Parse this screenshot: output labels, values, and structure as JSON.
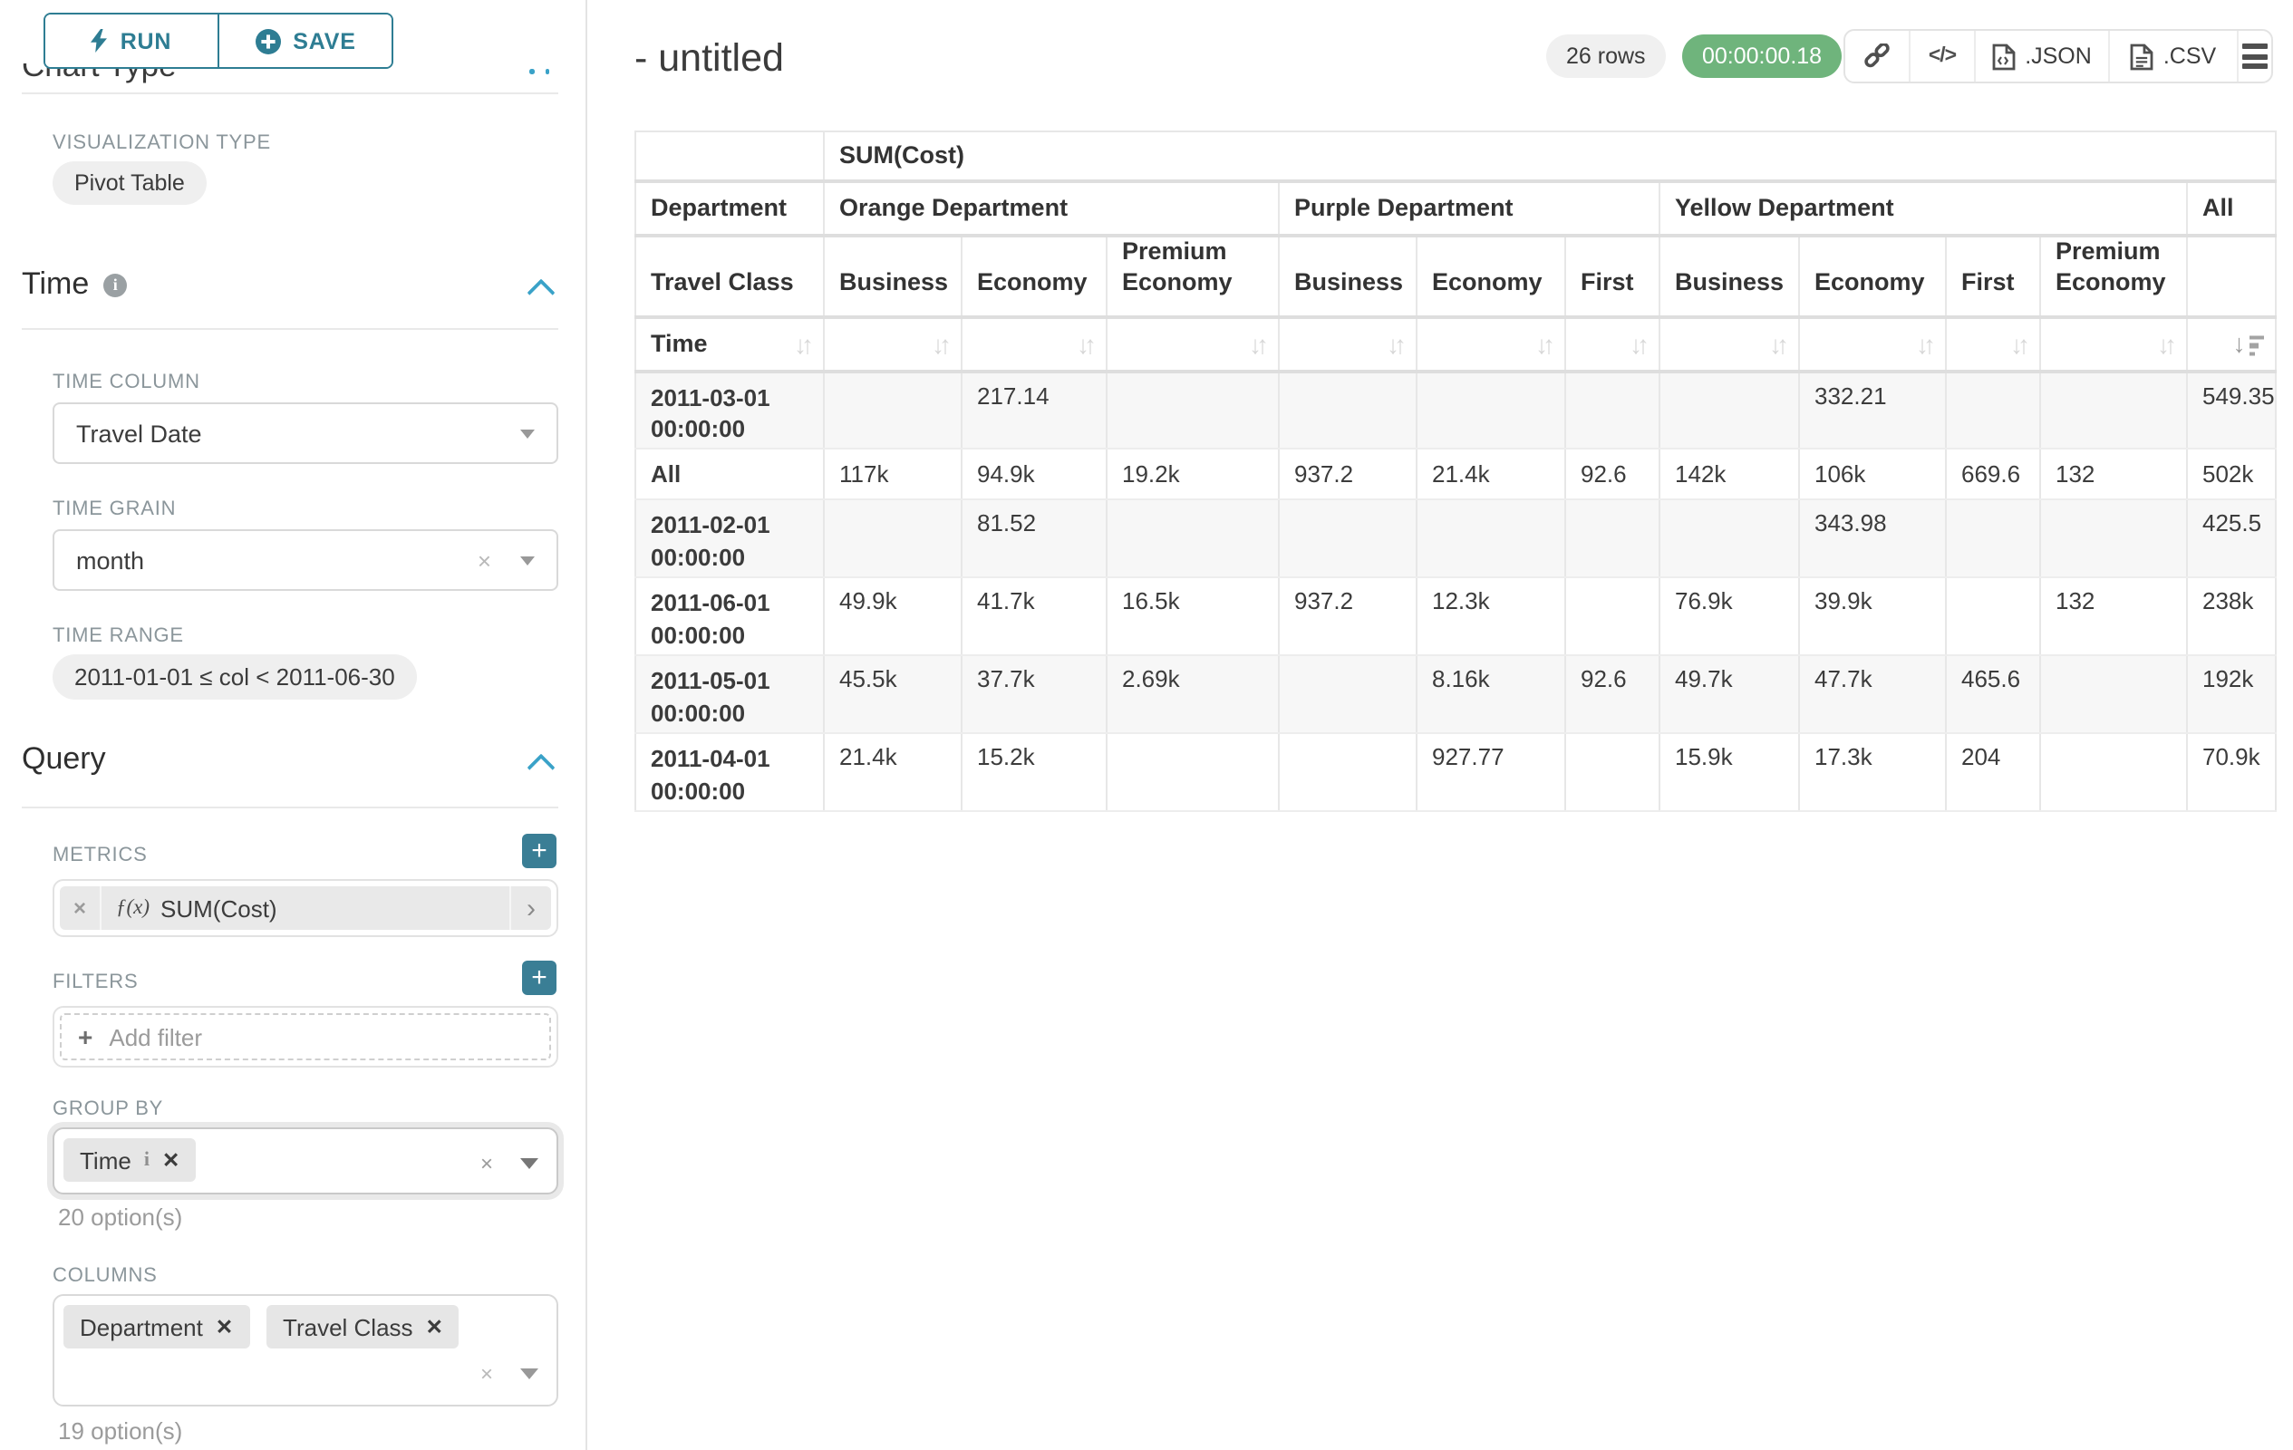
{
  "sidebar": {
    "run_button": "RUN",
    "save_button": "SAVE",
    "chart_type_header": "Chart Type",
    "visualization": {
      "label": "VISUALIZATION TYPE",
      "value": "Pivot Table"
    },
    "time_section": {
      "title": "Time",
      "time_column": {
        "label": "TIME COLUMN",
        "value": "Travel Date"
      },
      "time_grain": {
        "label": "TIME GRAIN",
        "value": "month"
      },
      "time_range": {
        "label": "TIME RANGE",
        "value": "2011-01-01 ≤ col < 2011-06-30"
      }
    },
    "query_section": {
      "title": "Query",
      "metrics": {
        "label": "METRICS",
        "metric_prefix": "ƒ(x)",
        "metric_value": "SUM(Cost)"
      },
      "filters": {
        "label": "FILTERS",
        "placeholder": "Add filter"
      },
      "group_by": {
        "label": "GROUP BY",
        "tags": [
          "Time"
        ],
        "caption": "20 option(s)"
      },
      "columns": {
        "label": "COLUMNS",
        "tags": [
          "Department",
          "Travel Class"
        ],
        "caption": "19 option(s)"
      }
    }
  },
  "header": {
    "title": "- untitled",
    "row_count": "26 rows",
    "timer": "00:00:00.18",
    "export_json": ".JSON",
    "export_csv": ".CSV"
  },
  "chart_data": {
    "type": "table",
    "metric_header": "SUM(Cost)",
    "row_headers": {
      "department": "Department",
      "travel_class": "Travel Class",
      "time": "Time"
    },
    "column_groups": [
      {
        "department": "Orange Department",
        "classes": [
          "Business",
          "Economy",
          "Premium Economy"
        ]
      },
      {
        "department": "Purple Department",
        "classes": [
          "Business",
          "Economy",
          "First"
        ]
      },
      {
        "department": "Yellow Department",
        "classes": [
          "Business",
          "Economy",
          "First",
          "Premium Economy"
        ]
      },
      {
        "department": "All",
        "classes": [
          ""
        ]
      }
    ],
    "rows": [
      {
        "time": "2011-03-01 00:00:00",
        "values": [
          "",
          "217.14",
          "",
          "",
          "",
          "",
          "",
          "332.21",
          "",
          "",
          "549.35"
        ]
      },
      {
        "time": "All",
        "values": [
          "117k",
          "94.9k",
          "19.2k",
          "937.2",
          "21.4k",
          "92.6",
          "142k",
          "106k",
          "669.6",
          "132",
          "502k"
        ]
      },
      {
        "time": "2011-02-01 00:00:00",
        "values": [
          "",
          "81.52",
          "",
          "",
          "",
          "",
          "",
          "343.98",
          "",
          "",
          "425.5"
        ]
      },
      {
        "time": "2011-06-01 00:00:00",
        "values": [
          "49.9k",
          "41.7k",
          "16.5k",
          "937.2",
          "12.3k",
          "",
          "76.9k",
          "39.9k",
          "",
          "132",
          "238k"
        ]
      },
      {
        "time": "2011-05-01 00:00:00",
        "values": [
          "45.5k",
          "37.7k",
          "2.69k",
          "",
          "8.16k",
          "92.6",
          "49.7k",
          "47.7k",
          "465.6",
          "",
          "192k"
        ]
      },
      {
        "time": "2011-04-01 00:00:00",
        "values": [
          "21.4k",
          "15.2k",
          "",
          "",
          "927.77",
          "",
          "15.9k",
          "17.3k",
          "204",
          "",
          "70.9k"
        ]
      }
    ],
    "sorted_column": "All",
    "sort_direction": "desc"
  },
  "colors": {
    "accent_teal": "#2e7d93",
    "chevron_blue": "#3aa2c8",
    "timer_green": "#6fb47c",
    "pill_gray": "#efefef",
    "tag_gray": "#e6e6e6"
  }
}
